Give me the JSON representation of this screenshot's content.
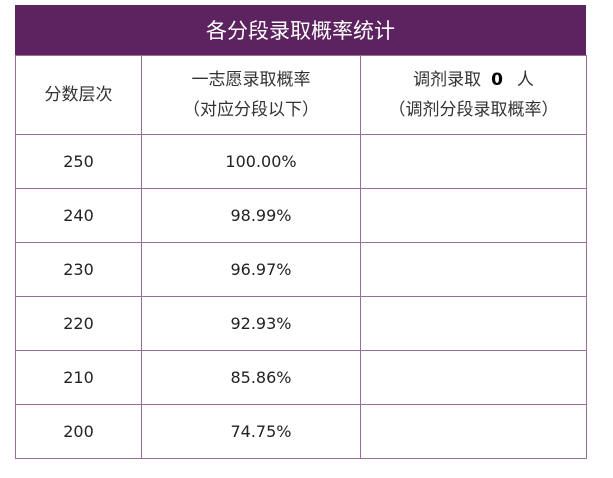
{
  "title": "各分段录取概率统计",
  "headers": {
    "col1": "分数层次",
    "col2_line1": "一志愿录取概率",
    "col2_line2": "（对应分段以下）",
    "col3_prefix": "调剂录取",
    "col3_count": "0",
    "col3_suffix": "人",
    "col3_line2": "（调剂分段录取概率）"
  },
  "rows": [
    {
      "score": "250",
      "rate": "100.00%",
      "adjust": ""
    },
    {
      "score": "240",
      "rate": "98.99%",
      "adjust": ""
    },
    {
      "score": "230",
      "rate": "96.97%",
      "adjust": ""
    },
    {
      "score": "220",
      "rate": "92.93%",
      "adjust": ""
    },
    {
      "score": "210",
      "rate": "85.86%",
      "adjust": ""
    },
    {
      "score": "200",
      "rate": "74.75%",
      "adjust": ""
    }
  ],
  "colors": {
    "header_bg": "#5c2360",
    "border": "#9a6e9c"
  }
}
